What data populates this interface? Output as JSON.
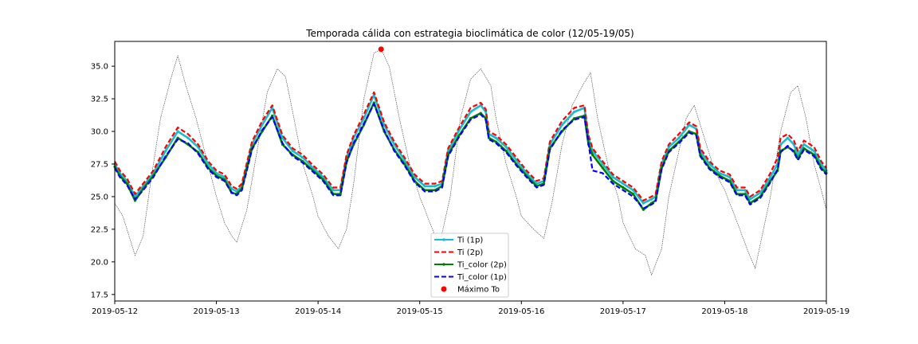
{
  "chart_data": {
    "type": "line",
    "title": "Temporada cálida con estrategia bioclimática de color (12/05-19/05)",
    "xlabel": "",
    "ylabel": "",
    "x_ticks": [
      "2019-05-12",
      "2019-05-13",
      "2019-05-14",
      "2019-05-15",
      "2019-05-16",
      "2019-05-17",
      "2019-05-18",
      "2019-05-19"
    ],
    "y_ticks": [
      "17.5",
      "20.0",
      "22.5",
      "25.0",
      "27.5",
      "30.0",
      "32.5",
      "35.0"
    ],
    "xlim_days": [
      0,
      7
    ],
    "ylim": [
      17.0,
      36.9
    ],
    "grid": false,
    "legend_position": "lower center",
    "outdoor_temperature": {
      "x_days": [
        0.0,
        0.08,
        0.12,
        0.2,
        0.28,
        0.35,
        0.45,
        0.55,
        0.62,
        0.7,
        0.8,
        0.9,
        1.0,
        1.08,
        1.15,
        1.2,
        1.3,
        1.4,
        1.5,
        1.6,
        1.68,
        1.75,
        1.85,
        1.95,
        2.0,
        2.1,
        2.2,
        2.28,
        2.35,
        2.45,
        2.55,
        2.62,
        2.7,
        2.8,
        2.9,
        3.0,
        3.1,
        3.15,
        3.2,
        3.3,
        3.4,
        3.5,
        3.6,
        3.7,
        3.75,
        3.85,
        3.95,
        4.0,
        4.12,
        4.22,
        4.3,
        4.4,
        4.5,
        4.6,
        4.68,
        4.75,
        4.85,
        4.95,
        5.0,
        5.12,
        5.22,
        5.28,
        5.38,
        5.45,
        5.55,
        5.62,
        5.7,
        5.8,
        5.9,
        6.0,
        6.1,
        6.22,
        6.3,
        6.45,
        6.55,
        6.65,
        6.72,
        6.8,
        6.88,
        6.95,
        7.0
      ],
      "values": [
        24.5,
        23.5,
        22.5,
        20.5,
        22.0,
        26.0,
        31.0,
        34.0,
        35.8,
        33.5,
        31.0,
        28.0,
        25.0,
        23.0,
        22.0,
        21.5,
        24.0,
        28.5,
        33.0,
        34.8,
        34.2,
        31.5,
        27.5,
        25.0,
        23.5,
        22.0,
        21.0,
        22.5,
        26.0,
        32.5,
        36.0,
        36.3,
        35.0,
        31.0,
        27.5,
        25.0,
        23.0,
        22.0,
        21.5,
        25.0,
        31.0,
        34.0,
        34.8,
        33.5,
        31.0,
        27.5,
        25.0,
        23.5,
        22.5,
        21.8,
        24.5,
        29.0,
        32.0,
        33.5,
        34.5,
        31.0,
        27.5,
        25.0,
        23.0,
        21.0,
        20.5,
        19.0,
        21.0,
        25.0,
        28.5,
        31.0,
        32.0,
        29.5,
        27.0,
        25.5,
        23.5,
        21.0,
        19.5,
        25.0,
        30.0,
        33.0,
        33.5,
        31.0,
        27.5,
        25.5,
        24.0
      ]
    },
    "max_outdoor_point": {
      "x_day": 2.62,
      "value": 36.3
    },
    "series": [
      {
        "name": "Ti (1p)",
        "color": "#17becf",
        "style": "solid-marker",
        "x_days": [
          0.0,
          0.05,
          0.12,
          0.2,
          0.28,
          0.38,
          0.5,
          0.62,
          0.72,
          0.82,
          0.92,
          1.0,
          1.08,
          1.15,
          1.2,
          1.25,
          1.35,
          1.45,
          1.55,
          1.65,
          1.75,
          1.85,
          1.95,
          2.05,
          2.15,
          2.22,
          2.28,
          2.35,
          2.45,
          2.55,
          2.65,
          2.75,
          2.85,
          2.95,
          3.05,
          3.15,
          3.22,
          3.28,
          3.38,
          3.5,
          3.6,
          3.65,
          3.68,
          3.75,
          3.85,
          3.95,
          4.05,
          4.15,
          4.22,
          4.28,
          4.4,
          4.52,
          4.62,
          4.66,
          4.7,
          4.8,
          4.9,
          5.0,
          5.1,
          5.2,
          5.28,
          5.32,
          5.38,
          5.45,
          5.55,
          5.65,
          5.72,
          5.76,
          5.85,
          5.95,
          6.05,
          6.12,
          6.2,
          6.25,
          6.35,
          6.45,
          6.52,
          6.55,
          6.62,
          6.68,
          6.72,
          6.78,
          6.88,
          6.95,
          7.0
        ],
        "values": [
          27.5,
          26.8,
          26.2,
          25.0,
          25.8,
          26.8,
          28.5,
          30.0,
          29.5,
          28.8,
          27.5,
          26.8,
          26.5,
          25.6,
          25.4,
          25.8,
          29.0,
          30.5,
          31.8,
          29.5,
          28.5,
          28.0,
          27.2,
          26.5,
          25.5,
          25.5,
          28.0,
          29.5,
          31.0,
          32.8,
          30.5,
          29.0,
          27.8,
          26.5,
          25.8,
          25.8,
          26.0,
          28.5,
          30.0,
          31.5,
          32.0,
          31.5,
          29.8,
          29.5,
          28.8,
          27.8,
          26.8,
          26.0,
          26.2,
          29.0,
          30.5,
          31.5,
          31.8,
          29.5,
          28.5,
          27.5,
          26.5,
          26.0,
          25.5,
          24.5,
          24.8,
          25.0,
          27.5,
          28.8,
          29.5,
          30.5,
          30.2,
          28.5,
          27.5,
          26.8,
          26.5,
          25.5,
          25.5,
          24.8,
          25.3,
          26.5,
          27.5,
          29.0,
          29.5,
          29.0,
          28.2,
          29.0,
          28.5,
          27.5,
          27.0
        ]
      },
      {
        "name": "Ti (2p)",
        "color": "#ff0000",
        "style": "dashed",
        "x_days": [
          0.0,
          0.05,
          0.12,
          0.2,
          0.28,
          0.38,
          0.5,
          0.62,
          0.72,
          0.82,
          0.92,
          1.0,
          1.08,
          1.15,
          1.2,
          1.25,
          1.35,
          1.45,
          1.55,
          1.65,
          1.75,
          1.85,
          1.95,
          2.05,
          2.15,
          2.22,
          2.28,
          2.35,
          2.45,
          2.55,
          2.65,
          2.75,
          2.85,
          2.95,
          3.05,
          3.15,
          3.22,
          3.28,
          3.38,
          3.5,
          3.6,
          3.65,
          3.68,
          3.75,
          3.85,
          3.95,
          4.05,
          4.15,
          4.22,
          4.28,
          4.4,
          4.52,
          4.62,
          4.66,
          4.7,
          4.8,
          4.9,
          5.0,
          5.1,
          5.2,
          5.28,
          5.32,
          5.38,
          5.45,
          5.55,
          5.65,
          5.72,
          5.76,
          5.85,
          5.95,
          6.05,
          6.12,
          6.2,
          6.25,
          6.35,
          6.45,
          6.52,
          6.55,
          6.62,
          6.68,
          6.72,
          6.78,
          6.88,
          6.95,
          7.0
        ],
        "values": [
          27.7,
          27.0,
          26.4,
          25.2,
          26.0,
          27.0,
          28.8,
          30.3,
          29.8,
          29.0,
          27.7,
          27.0,
          26.7,
          25.8,
          25.6,
          26.0,
          29.2,
          30.8,
          32.0,
          29.7,
          28.7,
          28.2,
          27.4,
          26.7,
          25.7,
          25.7,
          28.2,
          29.7,
          31.3,
          33.0,
          30.7,
          29.2,
          28.0,
          26.7,
          26.0,
          26.0,
          26.2,
          28.7,
          30.2,
          31.8,
          32.2,
          31.7,
          30.0,
          29.7,
          29.0,
          28.0,
          27.0,
          26.2,
          26.4,
          29.2,
          30.8,
          31.8,
          32.0,
          29.7,
          28.7,
          27.7,
          26.7,
          26.2,
          25.7,
          24.7,
          25.0,
          25.2,
          27.7,
          29.0,
          29.8,
          30.7,
          30.4,
          28.7,
          27.7,
          27.0,
          26.7,
          25.7,
          25.7,
          25.0,
          25.5,
          26.8,
          28.0,
          29.5,
          29.8,
          29.3,
          28.5,
          29.3,
          28.8,
          27.7,
          27.2
        ]
      },
      {
        "name": "Ti_color (2p)",
        "color": "#008000",
        "style": "solid-marker",
        "x_days": [
          0.0,
          0.05,
          0.12,
          0.2,
          0.28,
          0.38,
          0.5,
          0.62,
          0.72,
          0.82,
          0.92,
          1.0,
          1.08,
          1.15,
          1.2,
          1.25,
          1.35,
          1.45,
          1.55,
          1.65,
          1.75,
          1.85,
          1.95,
          2.05,
          2.15,
          2.22,
          2.28,
          2.35,
          2.45,
          2.55,
          2.65,
          2.75,
          2.85,
          2.95,
          3.05,
          3.15,
          3.22,
          3.28,
          3.38,
          3.5,
          3.6,
          3.65,
          3.68,
          3.75,
          3.85,
          3.95,
          4.05,
          4.15,
          4.22,
          4.28,
          4.4,
          4.52,
          4.62,
          4.66,
          4.7,
          4.8,
          4.9,
          5.0,
          5.1,
          5.2,
          5.28,
          5.32,
          5.38,
          5.45,
          5.55,
          5.65,
          5.72,
          5.76,
          5.85,
          5.95,
          6.05,
          6.12,
          6.2,
          6.25,
          6.35,
          6.45,
          6.52,
          6.55,
          6.62,
          6.68,
          6.72,
          6.78,
          6.88,
          6.95,
          7.0
        ],
        "values": [
          27.3,
          26.6,
          26.0,
          24.7,
          25.6,
          26.6,
          28.0,
          29.5,
          29.0,
          28.4,
          27.2,
          26.6,
          26.3,
          25.3,
          25.2,
          25.6,
          28.7,
          30.0,
          31.2,
          29.0,
          28.2,
          27.7,
          27.0,
          26.3,
          25.2,
          25.2,
          27.7,
          29.0,
          30.5,
          32.2,
          30.0,
          28.6,
          27.5,
          26.2,
          25.5,
          25.5,
          25.8,
          28.2,
          29.6,
          31.0,
          31.4,
          31.0,
          29.5,
          29.2,
          28.5,
          27.5,
          26.6,
          25.8,
          26.0,
          28.7,
          30.0,
          31.0,
          31.2,
          29.0,
          28.2,
          27.2,
          26.2,
          25.7,
          25.2,
          24.0,
          24.5,
          24.7,
          27.2,
          28.5,
          29.2,
          30.0,
          29.8,
          28.2,
          27.2,
          26.6,
          26.2,
          25.2,
          25.2,
          24.5,
          25.0,
          26.2,
          27.0,
          28.5,
          28.8,
          28.5,
          27.9,
          28.7,
          28.2,
          27.2,
          26.8
        ]
      },
      {
        "name": "Ti_color (1p)",
        "color": "#0000ff",
        "style": "dashed",
        "x_days": [
          0.0,
          0.05,
          0.12,
          0.2,
          0.28,
          0.38,
          0.5,
          0.62,
          0.72,
          0.82,
          0.92,
          1.0,
          1.08,
          1.15,
          1.2,
          1.25,
          1.35,
          1.45,
          1.55,
          1.65,
          1.75,
          1.85,
          1.95,
          2.05,
          2.15,
          2.22,
          2.28,
          2.35,
          2.45,
          2.55,
          2.65,
          2.75,
          2.85,
          2.95,
          3.05,
          3.15,
          3.22,
          3.28,
          3.38,
          3.5,
          3.6,
          3.65,
          3.68,
          3.75,
          3.85,
          3.95,
          4.05,
          4.15,
          4.22,
          4.28,
          4.4,
          4.52,
          4.62,
          4.66,
          4.7,
          4.8,
          4.9,
          5.0,
          5.1,
          5.2,
          5.28,
          5.32,
          5.38,
          5.45,
          5.55,
          5.65,
          5.72,
          5.76,
          5.85,
          5.95,
          6.05,
          6.12,
          6.2,
          6.25,
          6.35,
          6.45,
          6.52,
          6.55,
          6.62,
          6.68,
          6.72,
          6.78,
          6.88,
          6.95,
          7.0
        ],
        "values": [
          27.2,
          26.5,
          25.9,
          24.8,
          25.5,
          26.5,
          28.1,
          29.4,
          29.1,
          28.3,
          27.1,
          26.5,
          26.2,
          25.3,
          25.1,
          25.5,
          28.6,
          30.1,
          31.1,
          29.1,
          28.1,
          27.6,
          26.9,
          26.2,
          25.1,
          25.1,
          27.6,
          29.1,
          30.6,
          32.1,
          30.1,
          28.5,
          27.4,
          26.1,
          25.4,
          25.4,
          25.7,
          28.1,
          29.5,
          30.9,
          31.3,
          30.9,
          29.4,
          29.1,
          28.4,
          27.4,
          26.5,
          25.7,
          25.9,
          28.6,
          30.1,
          30.9,
          31.1,
          29.1,
          27.0,
          26.8,
          26.0,
          25.5,
          25.0,
          24.1,
          24.4,
          24.6,
          27.1,
          28.4,
          29.1,
          29.9,
          29.7,
          28.1,
          27.1,
          26.5,
          26.1,
          25.1,
          25.1,
          24.4,
          24.9,
          26.1,
          27.1,
          28.4,
          28.9,
          28.4,
          27.8,
          28.6,
          28.1,
          27.1,
          26.7
        ]
      }
    ],
    "legend": [
      {
        "label": "Ti (1p)",
        "color": "#17becf",
        "kind": "line-marker"
      },
      {
        "label": "Ti (2p)",
        "color": "#ff0000",
        "kind": "dashed"
      },
      {
        "label": "Ti_color (2p)",
        "color": "#008000",
        "kind": "line-marker"
      },
      {
        "label": "Ti_color (1p)",
        "color": "#0000ff",
        "kind": "dashed"
      },
      {
        "label": "Máximo To",
        "color": "#ff0000",
        "kind": "dot"
      }
    ]
  }
}
